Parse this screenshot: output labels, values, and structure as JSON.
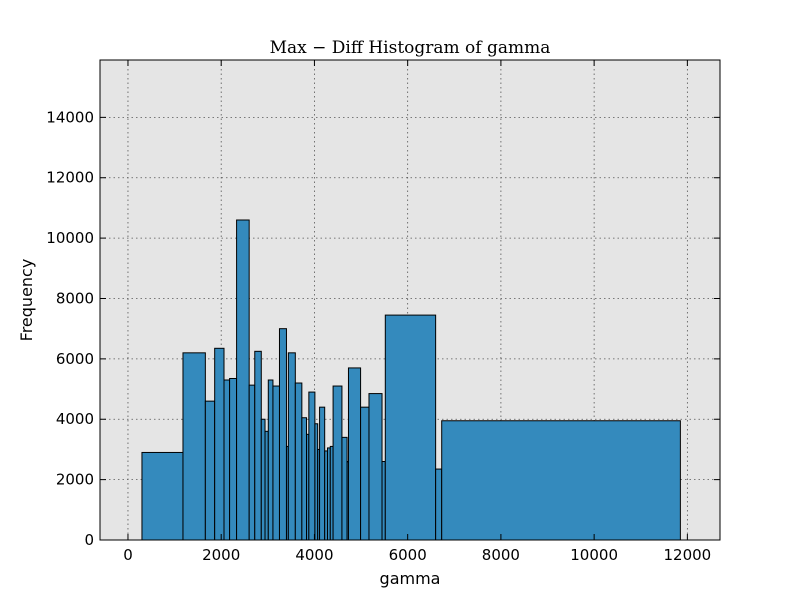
{
  "chart_data": {
    "type": "bar",
    "title": "Max − Diff Histogram of gamma",
    "xlabel": "gamma",
    "ylabel": "Frequency",
    "xlim": [
      -600,
      12700
    ],
    "ylim": [
      0,
      15900
    ],
    "xticks": [
      0,
      2000,
      4000,
      6000,
      8000,
      10000,
      12000
    ],
    "yticks": [
      0,
      2000,
      4000,
      6000,
      8000,
      10000,
      12000,
      14000
    ],
    "grid": true,
    "bar_color": "#348abd",
    "background_color": "#e5e5e5",
    "bins": [
      {
        "x0": 300,
        "x1": 1180,
        "value": 2900
      },
      {
        "x0": 1180,
        "x1": 1660,
        "value": 6200
      },
      {
        "x0": 1660,
        "x1": 1860,
        "value": 4600
      },
      {
        "x0": 1860,
        "x1": 2060,
        "value": 6350
      },
      {
        "x0": 2060,
        "x1": 2180,
        "value": 5300
      },
      {
        "x0": 2180,
        "x1": 2330,
        "value": 5350
      },
      {
        "x0": 2330,
        "x1": 2600,
        "value": 10600
      },
      {
        "x0": 2600,
        "x1": 2720,
        "value": 5130
      },
      {
        "x0": 2720,
        "x1": 2860,
        "value": 6250
      },
      {
        "x0": 2860,
        "x1": 2940,
        "value": 4000
      },
      {
        "x0": 2940,
        "x1": 3010,
        "value": 3600
      },
      {
        "x0": 3010,
        "x1": 3110,
        "value": 5300
      },
      {
        "x0": 3110,
        "x1": 3250,
        "value": 5100
      },
      {
        "x0": 3250,
        "x1": 3400,
        "value": 7000
      },
      {
        "x0": 3400,
        "x1": 3440,
        "value": 3100
      },
      {
        "x0": 3440,
        "x1": 3590,
        "value": 6200
      },
      {
        "x0": 3590,
        "x1": 3730,
        "value": 5200
      },
      {
        "x0": 3730,
        "x1": 3830,
        "value": 4050
      },
      {
        "x0": 3830,
        "x1": 3880,
        "value": 3500
      },
      {
        "x0": 3880,
        "x1": 4010,
        "value": 4900
      },
      {
        "x0": 4010,
        "x1": 4070,
        "value": 3850
      },
      {
        "x0": 4070,
        "x1": 4110,
        "value": 3000
      },
      {
        "x0": 4110,
        "x1": 4220,
        "value": 4400
      },
      {
        "x0": 4220,
        "x1": 4280,
        "value": 2950
      },
      {
        "x0": 4280,
        "x1": 4340,
        "value": 3050
      },
      {
        "x0": 4340,
        "x1": 4400,
        "value": 3100
      },
      {
        "x0": 4400,
        "x1": 4590,
        "value": 5100
      },
      {
        "x0": 4590,
        "x1": 4700,
        "value": 3400
      },
      {
        "x0": 4700,
        "x1": 4730,
        "value": 2600
      },
      {
        "x0": 4730,
        "x1": 4990,
        "value": 5700
      },
      {
        "x0": 4990,
        "x1": 5170,
        "value": 4400
      },
      {
        "x0": 5170,
        "x1": 5450,
        "value": 4850
      },
      {
        "x0": 5450,
        "x1": 5520,
        "value": 2600
      },
      {
        "x0": 5520,
        "x1": 6600,
        "value": 7450
      },
      {
        "x0": 6600,
        "x1": 6730,
        "value": 2350
      },
      {
        "x0": 6730,
        "x1": 11850,
        "value": 3950
      }
    ]
  }
}
